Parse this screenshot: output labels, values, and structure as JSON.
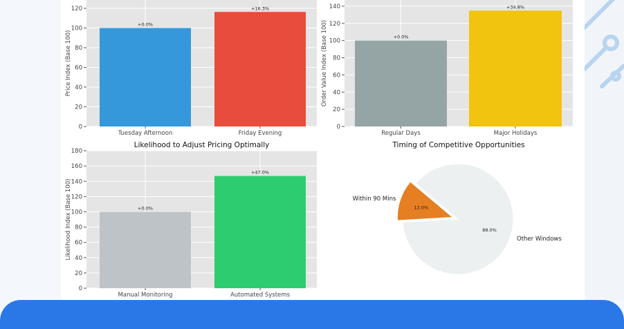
{
  "chart_data": [
    {
      "type": "bar",
      "title": "",
      "ylabel": "Price Index (Base 100)",
      "categories": [
        "Tuesday Afternoon",
        "Friday Evening"
      ],
      "values": [
        100,
        116.3
      ],
      "data_labels": [
        "+0.0%",
        "+16.3%"
      ],
      "colors": [
        "#3498db",
        "#e74c3c"
      ],
      "yticks": [
        0,
        20,
        40,
        60,
        80,
        100,
        120
      ],
      "ylim": [
        0,
        128
      ],
      "grid": true
    },
    {
      "type": "bar",
      "title": "",
      "ylabel": "Order Value Index (Base 100)",
      "xlabel": "Timing of Competitive Opportunities",
      "categories": [
        "Regular Days",
        "Major Holidays"
      ],
      "values": [
        100,
        134.8
      ],
      "data_labels": [
        "+0.0%",
        "+34.8%"
      ],
      "colors": [
        "#95a5a6",
        "#f1c40f"
      ],
      "yticks": [
        0,
        20,
        40,
        60,
        80,
        100,
        120,
        140
      ],
      "ylim": [
        0,
        147
      ],
      "grid": true
    },
    {
      "type": "bar",
      "title": "Likelihood to Adjust Pricing Optimally",
      "ylabel": "Likelihood Index (Base 100)",
      "categories": [
        "Manual Monitoring",
        "Automated Systems"
      ],
      "values": [
        100,
        147.0
      ],
      "data_labels": [
        "+0.0%",
        "+47.0%"
      ],
      "colors": [
        "#bdc3c7",
        "#2ecc71"
      ],
      "yticks": [
        0,
        20,
        40,
        60,
        80,
        100,
        120,
        140,
        160,
        180
      ],
      "ylim": [
        0,
        180
      ],
      "grid": true
    },
    {
      "type": "pie",
      "labels": [
        "Within 90 Mins",
        "Other Windows"
      ],
      "values": [
        12.0,
        88.0
      ],
      "data_labels": [
        "12.0%",
        "88.0%"
      ],
      "colors": [
        "#e67e22",
        "#ecf0f1"
      ],
      "exploded": [
        "Within 90 Mins"
      ]
    }
  ],
  "colors": {
    "band": "#2a78e8",
    "plot_bg": "#e5e5e5"
  }
}
